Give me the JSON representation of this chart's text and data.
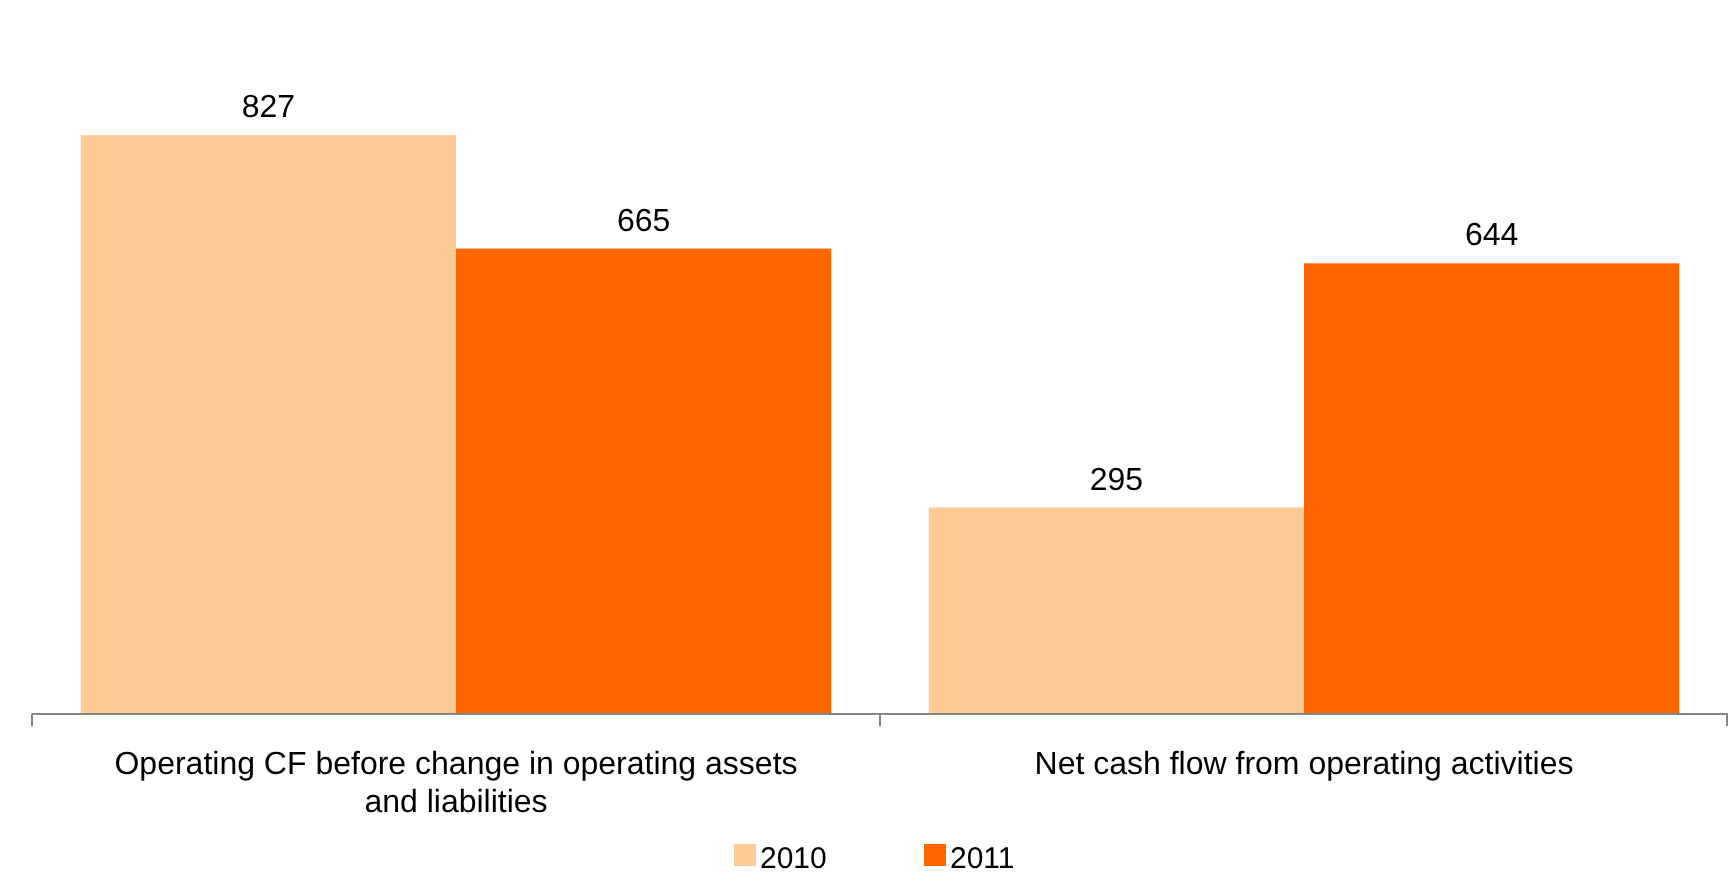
{
  "chart_data": {
    "type": "bar",
    "categories": [
      "Operating CF before change in operating assets and liabilities",
      "Net cash flow from operating activities"
    ],
    "series": [
      {
        "name": "2010",
        "color": "#fccb96",
        "values": [
          827,
          295
        ]
      },
      {
        "name": "2011",
        "color": "#ff6600",
        "values": [
          665,
          644
        ]
      }
    ],
    "data_labels": true,
    "legend": "bottom",
    "grid": false
  }
}
